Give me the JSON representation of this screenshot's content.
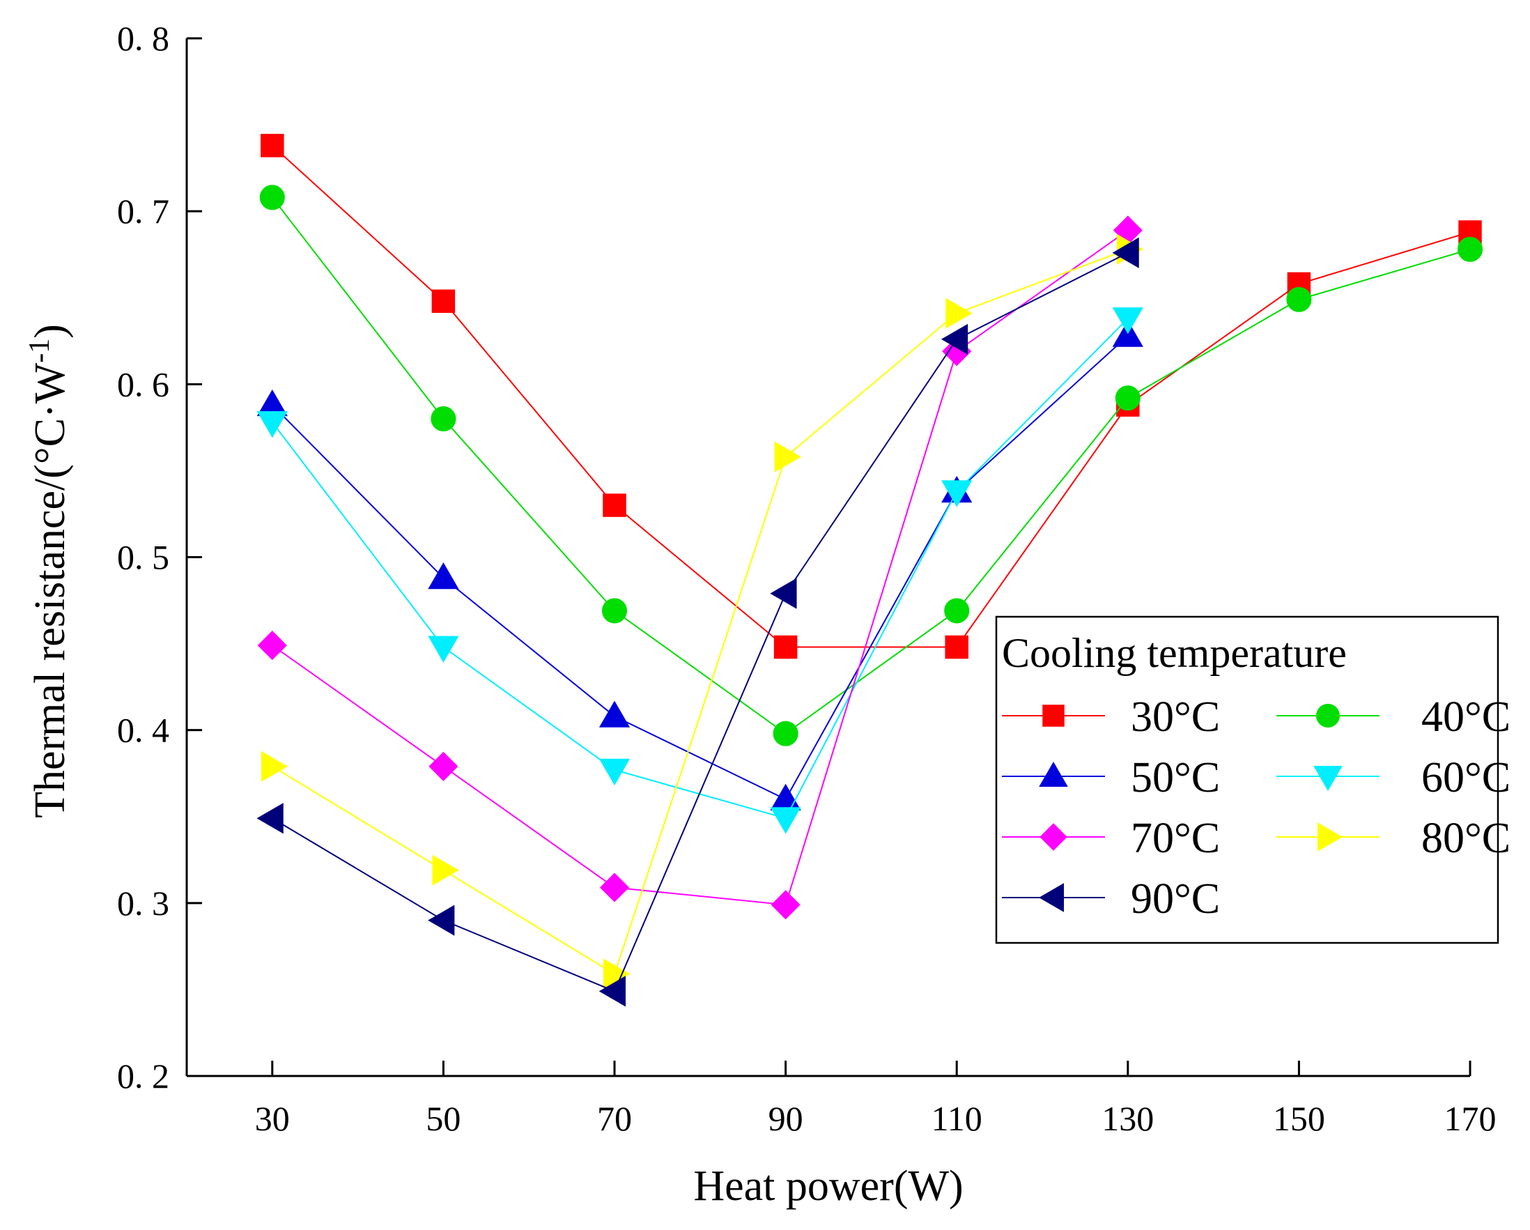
{
  "chart_data": {
    "type": "line",
    "title": "",
    "xlabel": "Heat power(W)",
    "ylabel": "Thermal resistance/(°C·W",
    "ylabel_superscript": "-1",
    "ylabel_suffix": ")",
    "xlim": [
      20,
      170
    ],
    "ylim": [
      0.2,
      0.8
    ],
    "x_ticks": [
      30,
      50,
      70,
      90,
      110,
      130,
      150,
      170
    ],
    "x_tick_labels": [
      "30",
      "50",
      "70",
      "90",
      "110",
      "130",
      "150",
      "170"
    ],
    "y_ticks": [
      0.2,
      0.3,
      0.4,
      0.5,
      0.6,
      0.7,
      0.8
    ],
    "y_tick_labels": [
      "0. 2",
      "0. 3",
      "0. 4",
      "0. 5",
      "0. 6",
      "0. 7",
      "0. 8"
    ],
    "grid": false,
    "legend": {
      "title": "Cooling temperature",
      "position": "center-right"
    },
    "series": [
      {
        "name": "30°C",
        "color": "#ff0000",
        "marker": "square",
        "x": [
          30,
          50,
          70,
          90,
          110,
          130,
          150,
          170
        ],
        "y": [
          0.738,
          0.648,
          0.53,
          0.448,
          0.448,
          0.588,
          0.658,
          0.688
        ]
      },
      {
        "name": "40°C",
        "color": "#00dd00",
        "marker": "circle",
        "x": [
          30,
          50,
          70,
          90,
          110,
          130,
          150,
          170
        ],
        "y": [
          0.708,
          0.58,
          0.469,
          0.398,
          0.469,
          0.592,
          0.649,
          0.678
        ]
      },
      {
        "name": "50°C",
        "color": "#0000dd",
        "marker": "triangle-up",
        "x": [
          30,
          50,
          70,
          90,
          110,
          130
        ],
        "y": [
          0.588,
          0.488,
          0.408,
          0.36,
          0.538,
          0.628
        ]
      },
      {
        "name": "60°C",
        "color": "#00eeff",
        "marker": "triangle-down",
        "x": [
          30,
          50,
          70,
          90,
          110,
          130
        ],
        "y": [
          0.578,
          0.448,
          0.377,
          0.349,
          0.538,
          0.638
        ]
      },
      {
        "name": "70°C",
        "color": "#ff00ff",
        "marker": "diamond",
        "x": [
          30,
          50,
          70,
          90,
          110,
          130
        ],
        "y": [
          0.449,
          0.379,
          0.309,
          0.299,
          0.619,
          0.689
        ]
      },
      {
        "name": "80°C",
        "color": "#ffff00",
        "marker": "triangle-right",
        "x": [
          30,
          50,
          70,
          90,
          110,
          130
        ],
        "y": [
          0.379,
          0.319,
          0.259,
          0.558,
          0.641,
          0.678
        ]
      },
      {
        "name": "90°C",
        "color": "#00007a",
        "marker": "triangle-left",
        "x": [
          30,
          50,
          70,
          90,
          110,
          130
        ],
        "y": [
          0.349,
          0.29,
          0.249,
          0.479,
          0.626,
          0.676
        ]
      }
    ]
  }
}
